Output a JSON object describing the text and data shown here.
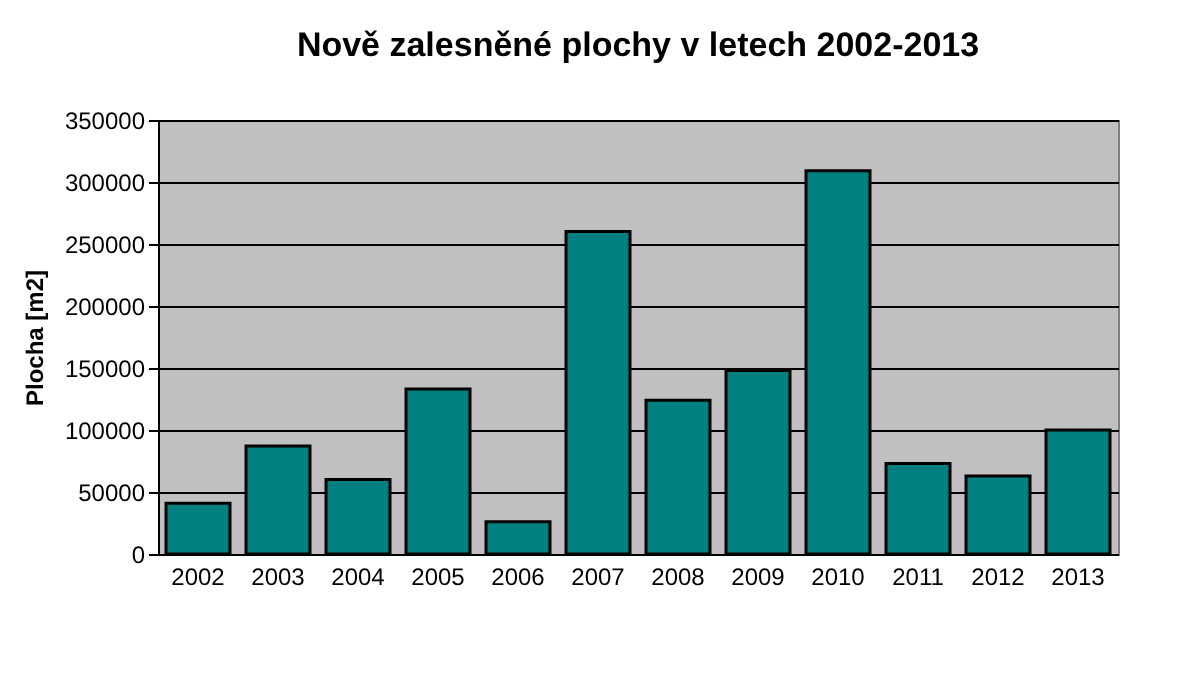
{
  "chart_data": {
    "type": "bar",
    "title": "Nově zalesněné plochy v letech 2002-2013",
    "ylabel": "Plocha [m2]",
    "categories": [
      "2002",
      "2003",
      "2004",
      "2005",
      "2006",
      "2007",
      "2008",
      "2009",
      "2010",
      "2011",
      "2012",
      "2013"
    ],
    "values": [
      41000,
      87000,
      60000,
      133000,
      26000,
      260000,
      124000,
      148000,
      309000,
      73000,
      63000,
      100000
    ],
    "color": "#008080",
    "ylim": [
      0,
      350000
    ],
    "yticks": [
      0,
      50000,
      100000,
      150000,
      200000,
      250000,
      300000,
      350000
    ],
    "grid": "y"
  }
}
